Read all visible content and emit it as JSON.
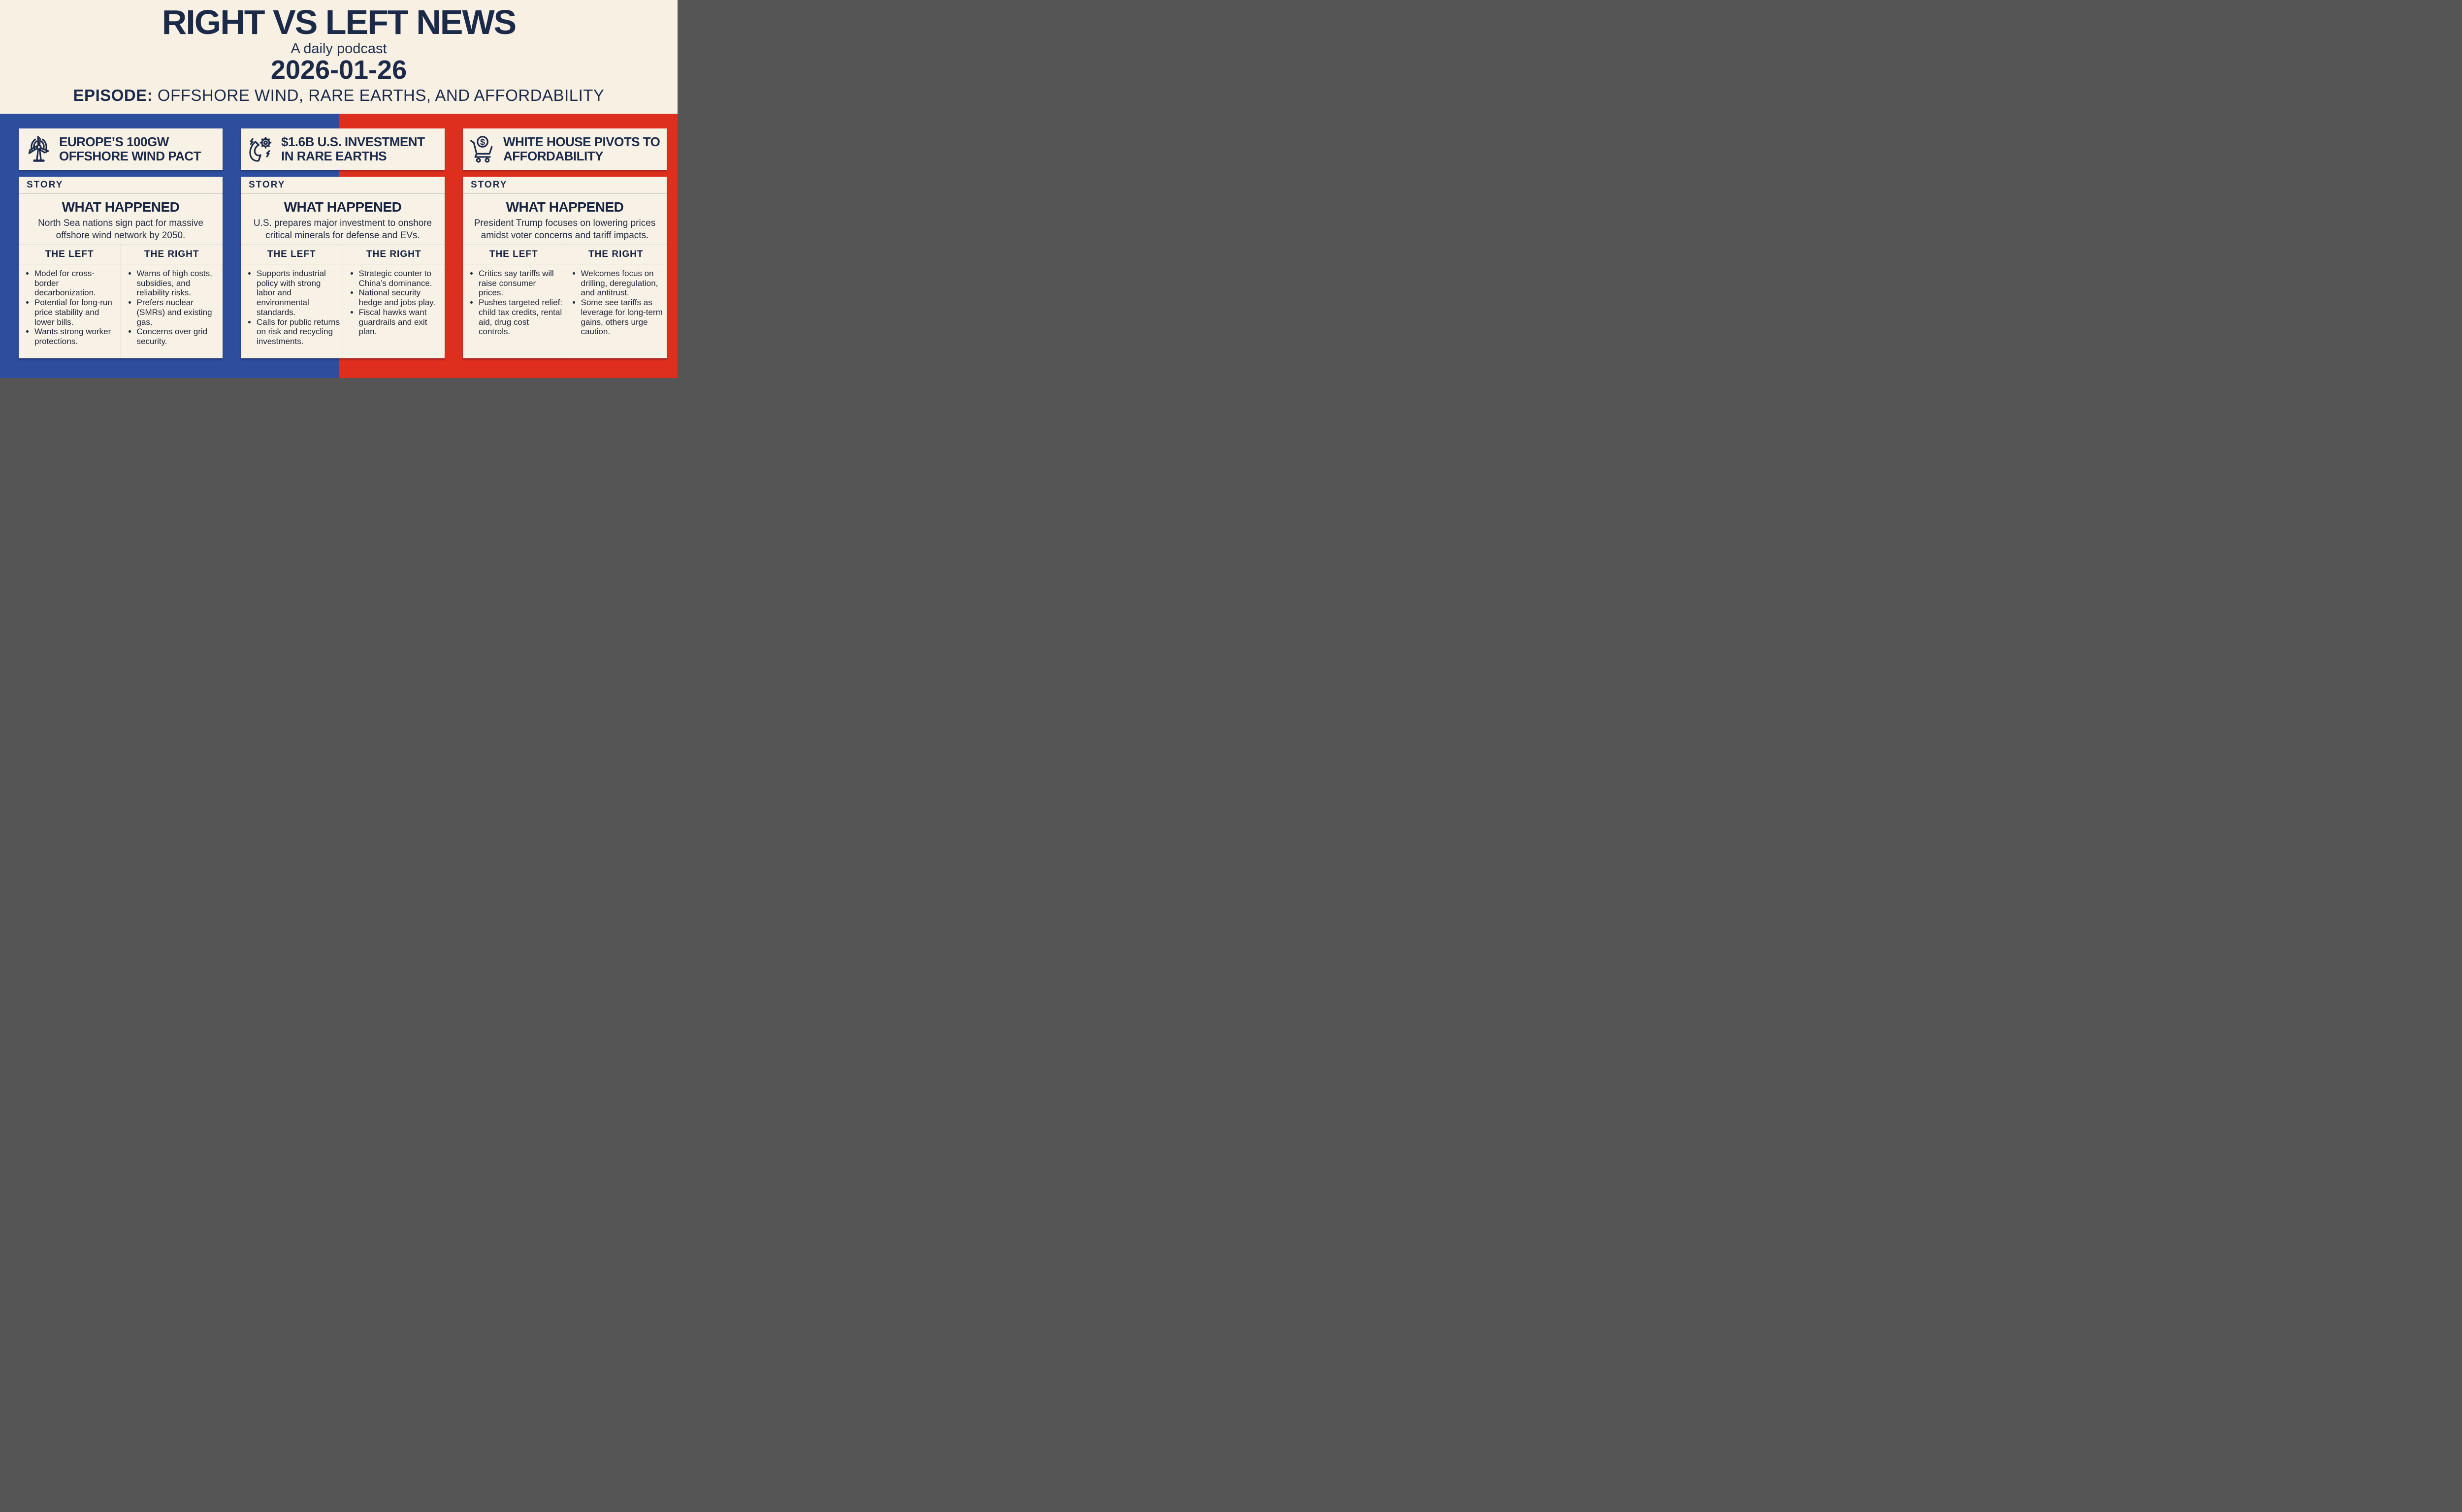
{
  "header": {
    "title": "RIGHT VS LEFT NEWS",
    "subtitle": "A daily podcast",
    "date": "2026-01-26",
    "episode_label": "EPISODE:",
    "episode_title": "OFFSHORE WIND, RARE EARTHS, AND AFFORDABILITY"
  },
  "colors": {
    "left_blue": "#2d4e9d",
    "right_red": "#de2f1e",
    "cream": "#f7f0e3",
    "card_cream": "#f8f1e5",
    "navy_text": "#1c2a4a",
    "divider_gray": "#c4c4bc"
  },
  "labels": {
    "story": "STORY",
    "what_happened": "WHAT HAPPENED",
    "the_left": "THE LEFT",
    "the_right": "THE RIGHT"
  },
  "stories": [
    {
      "icon": "wind-turbine-icon",
      "title": "EUROPE’S 100GW OFFSHORE WIND PACT",
      "summary": "North Sea nations sign pact for massive offshore wind network by 2050.",
      "left_points": [
        "Model for cross-border decarbonization.",
        "Potential for long-run price stability and lower bills.",
        "Wants strong worker protections."
      ],
      "right_points": [
        "Warns of high costs, subsidies, and reliability risks.",
        "Prefers nuclear (SMRs) and existing gas.",
        "Concerns over grid security."
      ]
    },
    {
      "icon": "magnet-gear-icon",
      "title": "$1.6B U.S. INVESTMENT IN RARE EARTHS",
      "summary": "U.S. prepares major investment to onshore critical minerals for defense and EVs.",
      "left_points": [
        "Supports industrial policy with strong labor and environmental standards.",
        "Calls for public returns on risk and recycling investments."
      ],
      "right_points": [
        "Strategic counter to China’s dominance.",
        "National security hedge and jobs play.",
        "Fiscal hawks want guardrails and exit plan."
      ]
    },
    {
      "icon": "shopping-cart-dollar-icon",
      "title": "WHITE HOUSE PIVOTS TO AFFORDABILITY",
      "summary": "President Trump focuses on lowering prices amidst voter concerns and tariff impacts.",
      "left_points": [
        "Critics say tariffs will raise consumer prices.",
        "Pushes targeted relief: child tax credits, rental aid, drug cost controls."
      ],
      "right_points": [
        "Welcomes focus on drilling, deregulation, and antitrust.",
        "Some see tariffs as leverage for long-term gains, others urge caution."
      ]
    }
  ]
}
